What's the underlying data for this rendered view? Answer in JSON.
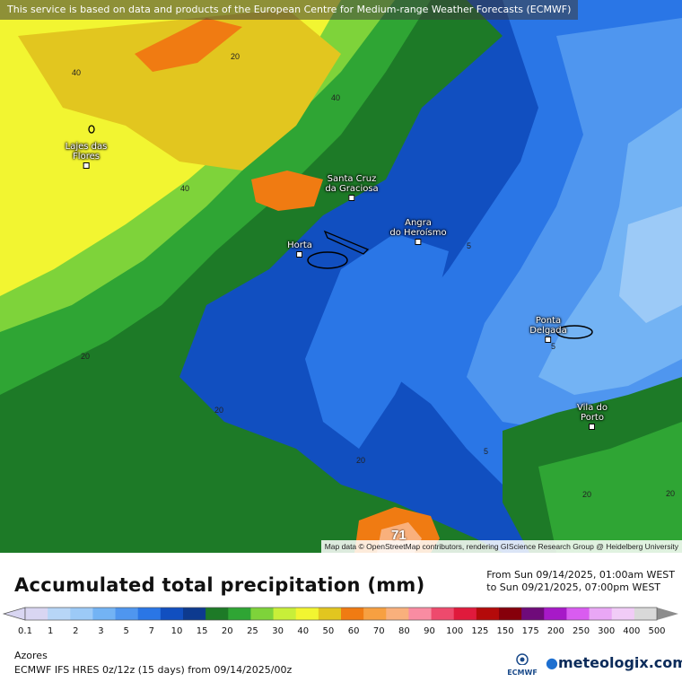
{
  "attribution_top": "This service is based on data and products of the European Centre for Medium-range Weather Forecasts (ECMWF)",
  "attribution_bottom": "Map data © OpenStreetMap contributors, rendering GIScience Research Group @ Heidelberg University",
  "places": [
    {
      "name": "Lajes das\nFlores",
      "key": "lajes"
    },
    {
      "name": "Santa Cruz\nda Graciosa",
      "key": "graciosa"
    },
    {
      "name": "Angra\ndo Heroísmo",
      "key": "angra"
    },
    {
      "name": "Horta",
      "key": "horta"
    },
    {
      "name": "Ponta\nDelgada",
      "key": "ponta"
    },
    {
      "name": "Vila do\nPorto",
      "key": "vila"
    }
  ],
  "contour_labels": [
    "40",
    "20",
    "40",
    "40",
    "20",
    "20",
    "5",
    "5",
    "5",
    "20",
    "20",
    "20"
  ],
  "max_value": "71",
  "legend": {
    "title": "Accumulated total precipitation (mm)",
    "period_from": "From Sun 09/14/2025, 01:00am WEST",
    "period_to": "to Sun 09/21/2025, 07:00pm WEST",
    "ticks": [
      "0.1",
      "1",
      "2",
      "3",
      "5",
      "7",
      "10",
      "15",
      "20",
      "25",
      "30",
      "40",
      "50",
      "60",
      "70",
      "80",
      "90",
      "100",
      "125",
      "150",
      "175",
      "200",
      "250",
      "300",
      "400",
      "500"
    ],
    "colors": [
      "#d9d6f2",
      "#b7d6f7",
      "#9ccaf7",
      "#73b3f4",
      "#4f96ef",
      "#2a76e6",
      "#114fc0",
      "#0d3a8f",
      "#1d7a27",
      "#2fa534",
      "#7ed33a",
      "#c8ef39",
      "#f2f531",
      "#e2c61f",
      "#f07b12",
      "#f7a041",
      "#f9b07c",
      "#f98ca2",
      "#ee4a6d",
      "#e01a3c",
      "#b40a0a",
      "#86000b",
      "#6f0b7a",
      "#a719c8",
      "#d95cf0",
      "#e9a7f5",
      "#f1ccf7",
      "#d9d9d9"
    ],
    "region": "Azores",
    "model": "ECMWF IFS HRES 0z/12z (15 days) from  09/14/2025/00z",
    "brand": "meteologix.com",
    "brand_logo_text": "ECMWF"
  }
}
